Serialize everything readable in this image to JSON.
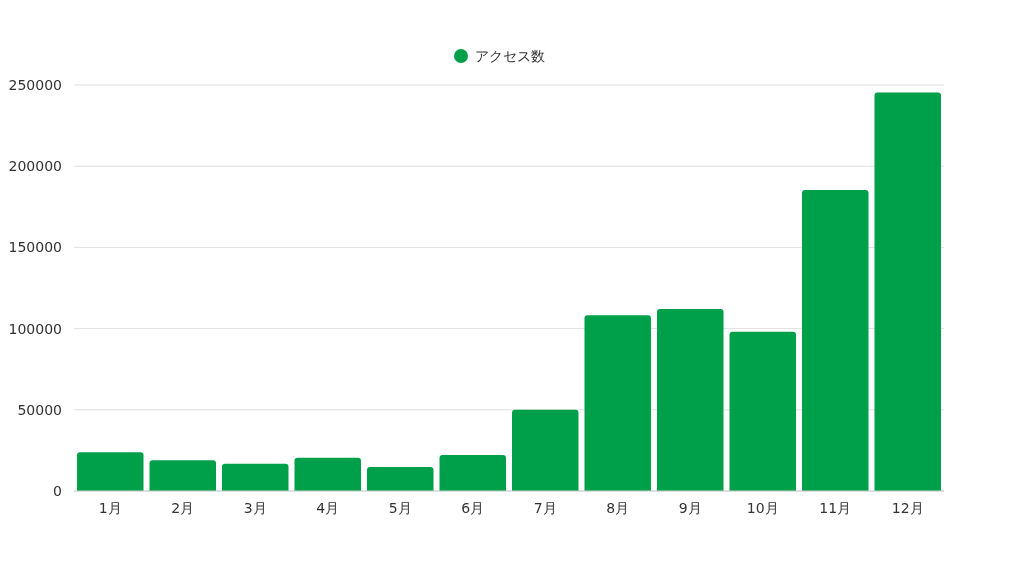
{
  "chart_data": {
    "type": "bar",
    "categories": [
      "1月",
      "2月",
      "3月",
      "4月",
      "5月",
      "6月",
      "7月",
      "8月",
      "9月",
      "10月",
      "11月",
      "12月"
    ],
    "series": [
      {
        "name": "アクセス数",
        "color": "#00a04a",
        "values": [
          23800,
          18900,
          16800,
          20500,
          14800,
          22200,
          50000,
          108200,
          112100,
          98000,
          185300,
          245400
        ]
      }
    ],
    "ylim": [
      0,
      250000
    ],
    "yticks": [
      0,
      50000,
      100000,
      150000,
      200000,
      250000
    ],
    "grid": "y",
    "legend": "top",
    "marker": "circle"
  }
}
